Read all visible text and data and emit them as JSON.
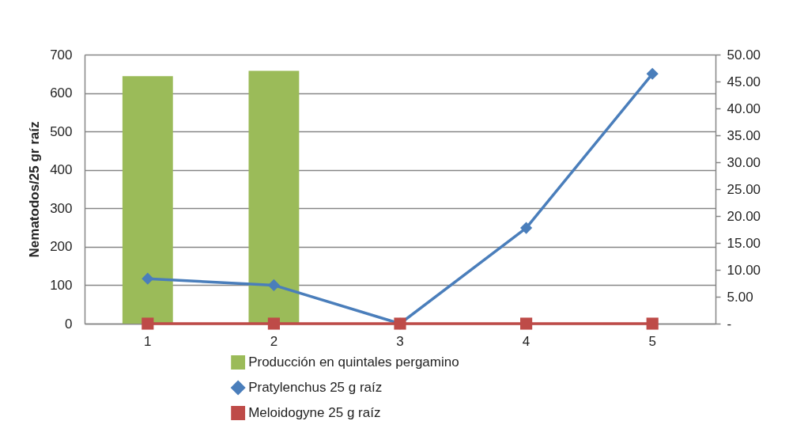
{
  "chart_data": {
    "type": "bar",
    "categories": [
      "1",
      "2",
      "3",
      "4",
      "5"
    ],
    "series": [
      {
        "name": "Producción en quintales pergamino",
        "axis": "y2",
        "color": "#9bbb59",
        "values": [
          46,
          47,
          null,
          null,
          null
        ]
      },
      {
        "name": "Pratylenchus 25 g  raíz",
        "type": "line",
        "marker": "diamond",
        "line_style": "solid",
        "color": "#4a7ebb",
        "values": [
          117,
          100,
          0,
          249,
          650
        ]
      },
      {
        "name": "Meloidogyne 25 g  raíz",
        "type": "line",
        "marker": "square",
        "line_style": "solid",
        "color": "#be4b48",
        "values": [
          0,
          0,
          0,
          0,
          0
        ]
      }
    ],
    "ylabel": "Nematodos/25 gr raíz",
    "ylim": [
      0,
      700
    ],
    "yticks": [
      0,
      100,
      200,
      300,
      400,
      500,
      600,
      700
    ],
    "y2lim": [
      0,
      50
    ],
    "y2ticks": [
      {
        "value": 0,
        "label": "-"
      },
      {
        "value": 5,
        "label": "5.00"
      },
      {
        "value": 10,
        "label": "10.00"
      },
      {
        "value": 15,
        "label": "15.00"
      },
      {
        "value": 20,
        "label": "20.00"
      },
      {
        "value": 25,
        "label": "25.00"
      },
      {
        "value": 30,
        "label": "30.00"
      },
      {
        "value": 35,
        "label": "35.00"
      },
      {
        "value": 40,
        "label": "40.00"
      },
      {
        "value": 45,
        "label": "45.00"
      },
      {
        "value": 50,
        "label": "50.00"
      }
    ],
    "grid": "y",
    "legend": "bottom"
  }
}
